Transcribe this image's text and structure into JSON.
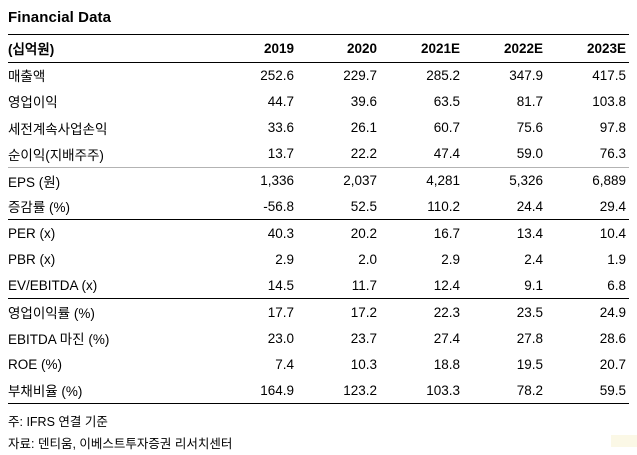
{
  "title": "Financial Data",
  "table": {
    "unit_label": "(십억원)",
    "columns": [
      "2019",
      "2020",
      "2021E",
      "2022E",
      "2023E"
    ],
    "rows": [
      {
        "label": "매출액",
        "values": [
          "252.6",
          "229.7",
          "285.2",
          "347.9",
          "417.5"
        ]
      },
      {
        "label": "영업이익",
        "values": [
          "44.7",
          "39.6",
          "63.5",
          "81.7",
          "103.8"
        ]
      },
      {
        "label": "세전계속사업손익",
        "values": [
          "33.6",
          "26.1",
          "60.7",
          "75.6",
          "97.8"
        ]
      },
      {
        "label": "순이익(지배주주)",
        "values": [
          "13.7",
          "22.2",
          "47.4",
          "59.0",
          "76.3"
        ]
      },
      {
        "label": "EPS (원)",
        "values": [
          "1,336",
          "2,037",
          "4,281",
          "5,326",
          "6,889"
        ]
      },
      {
        "label": "증감률 (%)",
        "values": [
          "-56.8",
          "52.5",
          "110.2",
          "24.4",
          "29.4"
        ]
      },
      {
        "label": "PER (x)",
        "values": [
          "40.3",
          "20.2",
          "16.7",
          "13.4",
          "10.4"
        ]
      },
      {
        "label": "PBR (x)",
        "values": [
          "2.9",
          "2.0",
          "2.9",
          "2.4",
          "1.9"
        ]
      },
      {
        "label": "EV/EBITDA (x)",
        "values": [
          "14.5",
          "11.7",
          "12.4",
          "9.1",
          "6.8"
        ]
      },
      {
        "label": "영업이익률 (%)",
        "values": [
          "17.7",
          "17.2",
          "22.3",
          "23.5",
          "24.9"
        ]
      },
      {
        "label": "EBITDA 마진 (%)",
        "values": [
          "23.0",
          "23.7",
          "27.4",
          "27.8",
          "28.6"
        ]
      },
      {
        "label": "ROE (%)",
        "values": [
          "7.4",
          "10.3",
          "18.8",
          "19.5",
          "20.7"
        ]
      },
      {
        "label": "부채비율 (%)",
        "values": [
          "164.9",
          "123.2",
          "103.3",
          "78.2",
          "59.5"
        ]
      }
    ]
  },
  "footnotes": [
    "주: IFRS 연결 기준",
    "자료: 덴티움, 이베스트투자증권 리서치센터"
  ]
}
